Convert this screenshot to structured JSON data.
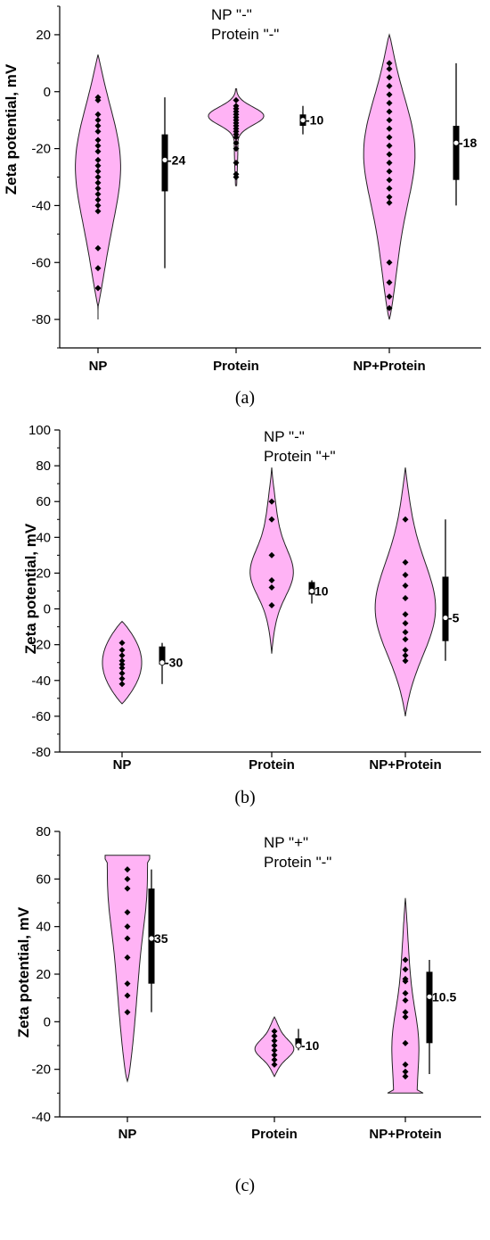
{
  "chart_data": [
    {
      "type": "violin",
      "panel_label": "(a)",
      "annotation": [
        "NP \"-\"",
        "Protein \"-\""
      ],
      "ylabel": "Zeta potential, mV",
      "xlabel": "",
      "ylim": [
        -90,
        30
      ],
      "y_ticks": [
        20,
        0,
        -20,
        -40,
        -60,
        -80
      ],
      "categories": [
        "NP",
        "Protein",
        "NP+Protein"
      ],
      "grid": false,
      "groups": [
        {
          "category": "NP",
          "median_label": "-24",
          "median": -24,
          "violin_range": [
            -80,
            13
          ],
          "points": [
            -2,
            -3,
            -8,
            -10,
            -12,
            -14,
            -17,
            -19,
            -21,
            -24,
            -26,
            -28,
            -30,
            -32,
            -34,
            -36,
            -38,
            -40,
            -42,
            -55,
            -62,
            -69
          ],
          "box": {
            "q1": -35,
            "q3": -15,
            "whisker_low": -62,
            "whisker_high": -2
          }
        },
        {
          "category": "Protein",
          "median_label": "-10",
          "median": -10,
          "violin_range": [
            -33,
            1
          ],
          "points": [
            -3,
            -5,
            -6,
            -7,
            -8,
            -9,
            -10,
            -11,
            -12,
            -13,
            -14,
            -15,
            -16,
            -18,
            -20,
            -25,
            -29,
            -30
          ],
          "box": {
            "q1": -12,
            "q3": -8,
            "whisker_low": -15,
            "whisker_high": -5
          }
        },
        {
          "category": "NP+Protein",
          "median_label": "-18",
          "median": -18,
          "violin_range": [
            -80,
            20
          ],
          "points": [
            10,
            8,
            5,
            2,
            -1,
            -4,
            -7,
            -10,
            -13,
            -16,
            -19,
            -22,
            -25,
            -28,
            -31,
            -34,
            -37,
            -39,
            -60,
            -67,
            -72,
            -76
          ],
          "box": {
            "q1": -31,
            "q3": -12,
            "whisker_low": -40,
            "whisker_high": 10
          }
        }
      ]
    },
    {
      "type": "violin",
      "panel_label": "(b)",
      "annotation": [
        "NP \"-\"",
        "Protein \"+\""
      ],
      "ylabel": "Zeta potential, mV",
      "xlabel": "",
      "ylim": [
        -80,
        100
      ],
      "y_ticks": [
        100,
        80,
        60,
        40,
        20,
        0,
        -20,
        -40,
        -60,
        -80
      ],
      "categories": [
        "NP",
        "Protein",
        "NP+Protein"
      ],
      "grid": false,
      "groups": [
        {
          "category": "NP",
          "median_label": "-30",
          "median": -30,
          "violin_range": [
            -53,
            -7
          ],
          "points": [
            -19,
            -23,
            -26,
            -29,
            -31,
            -33,
            -36,
            -39,
            -42
          ],
          "box": {
            "q1": -31,
            "q3": -21,
            "whisker_low": -42,
            "whisker_high": -19
          }
        },
        {
          "category": "Protein",
          "median_label": "10",
          "median": 10,
          "violin_range": [
            -25,
            79
          ],
          "points": [
            60,
            50,
            30,
            16,
            12,
            2
          ],
          "box": {
            "q1": 8,
            "q3": 15,
            "whisker_low": 3,
            "whisker_high": 16
          }
        },
        {
          "category": "NP+Protein",
          "median_label": "-5",
          "median": -5,
          "violin_range": [
            -60,
            79
          ],
          "points": [
            50,
            26,
            19,
            13,
            6,
            -3,
            -8,
            -13,
            -17,
            -23,
            -26,
            -29
          ],
          "box": {
            "q1": -18,
            "q3": 18,
            "whisker_low": -29,
            "whisker_high": 50
          }
        }
      ]
    },
    {
      "type": "violin",
      "panel_label": "(c)",
      "annotation": [
        "NP \"+\"",
        "Protein \"-\""
      ],
      "ylabel": "Zeta potential, mV",
      "xlabel": "",
      "ylim": [
        -40,
        80
      ],
      "y_ticks": [
        80,
        60,
        40,
        20,
        0,
        -20,
        -40
      ],
      "categories": [
        "NP",
        "Protein",
        "NP+Protein"
      ],
      "grid": false,
      "groups": [
        {
          "category": "NP",
          "median_label": "35",
          "median": 35,
          "violin_range": [
            -25,
            70
          ],
          "points": [
            64,
            60,
            56,
            46,
            40,
            35,
            27,
            16,
            11,
            4
          ],
          "box": {
            "q1": 16,
            "q3": 56,
            "whisker_low": 4,
            "whisker_high": 64
          }
        },
        {
          "category": "Protein",
          "median_label": "-10",
          "median": -10,
          "violin_range": [
            -23,
            2
          ],
          "points": [
            -4,
            -6,
            -8,
            -10,
            -12,
            -14,
            -16,
            -18
          ],
          "box": {
            "q1": -10,
            "q3": -7,
            "whisker_low": -12,
            "whisker_high": -3
          }
        },
        {
          "category": "NP+Protein",
          "median_label": "10.5",
          "median": 10.5,
          "violin_range": [
            -30,
            52
          ],
          "points": [
            26,
            22,
            18,
            17,
            12,
            9,
            4,
            2,
            -9,
            -18,
            -21,
            -23
          ],
          "box": {
            "q1": -9,
            "q3": 21,
            "whisker_low": -22,
            "whisker_high": 26
          }
        }
      ]
    }
  ]
}
